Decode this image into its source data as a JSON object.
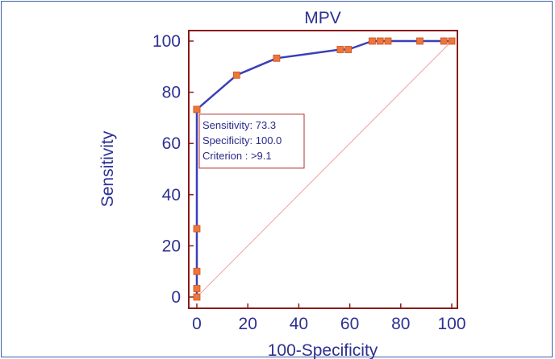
{
  "chart_data": {
    "type": "line",
    "title": "MPV",
    "xlabel": "100-Specificity",
    "ylabel": "Sensitivity",
    "xlim": [
      0,
      100
    ],
    "ylim": [
      0,
      100
    ],
    "x_ticks": [
      0,
      20,
      40,
      60,
      80,
      100
    ],
    "y_ticks": [
      0,
      20,
      40,
      60,
      80,
      100
    ],
    "series": [
      {
        "kind": "roc-curve",
        "x": [
          0,
          0,
          0,
          0,
          0,
          0,
          15.6,
          31.3,
          56.3,
          59.4,
          68.8,
          71.9,
          75.0,
          87.5,
          96.9,
          100
        ],
        "y": [
          0,
          3.3,
          10.0,
          26.7,
          73.3,
          73.3,
          86.7,
          93.3,
          96.7,
          96.7,
          100,
          100,
          100,
          100,
          100,
          100
        ],
        "color": "#3b3fb8",
        "marker_color": "#f0753a"
      },
      {
        "kind": "reference-diagonal",
        "x": [
          0,
          100
        ],
        "y": [
          0,
          100
        ],
        "color": "#f0a0a0"
      }
    ],
    "annotation": {
      "lines": [
        "Sensitivity: 73.3",
        "Specificity: 100.0",
        "Criterion : >9.1"
      ],
      "anchor_x": 0,
      "anchor_y": 73.3,
      "border_color": "#b03030",
      "text_color": "#2a2a8a"
    },
    "plot_border_color": "#8b1a1a",
    "text_color": "#2e3192"
  }
}
